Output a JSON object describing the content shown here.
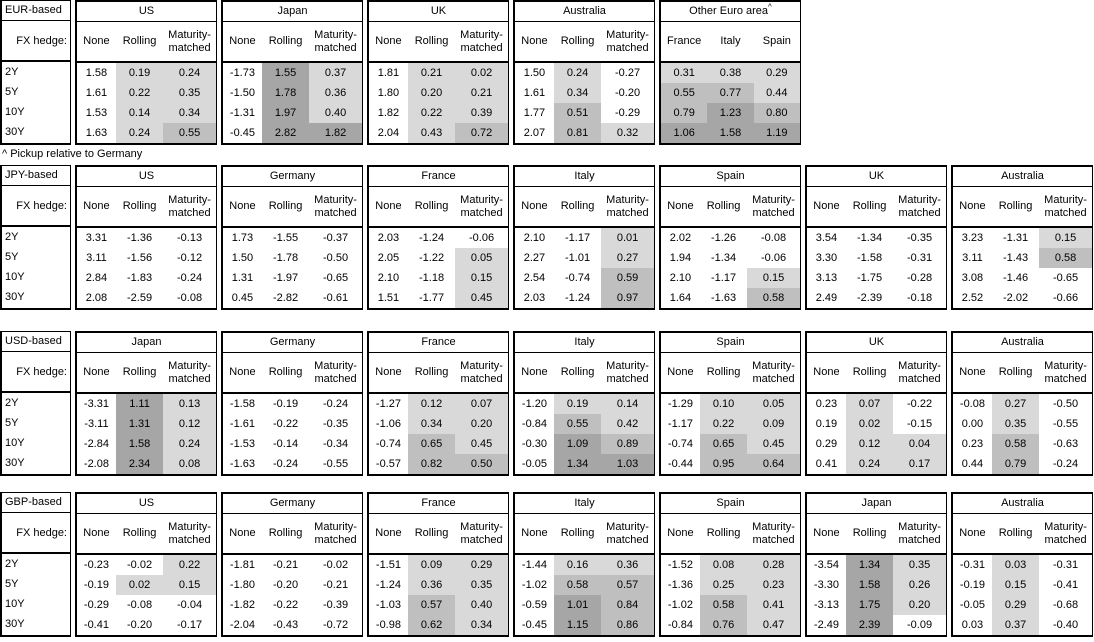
{
  "footnote": "^ Pickup relative to Germany",
  "hedge_label": "FX hedge:",
  "hedge_columns": [
    "None",
    "Rolling",
    "Maturity-matched"
  ],
  "row_labels": [
    "2Y",
    "5Y",
    "10Y",
    "30Y"
  ],
  "shading": {
    "negative": "#ffffff",
    "low": "#d9d9d9",
    "mid": "#bfbfbf",
    "high": "#a6a6a6",
    "bins": [
      0,
      0.5,
      1.0
    ],
    "note": "cell background by value: <0 white, 0-0.5 low, 0.5-1 mid, >=1 high"
  },
  "border_color": "#000000",
  "tables": [
    {
      "base": "EUR-based",
      "groups": [
        {
          "name": "US",
          "shaded": [
            false,
            true,
            true
          ],
          "rows": [
            [
              "1.58",
              "0.19",
              "0.24"
            ],
            [
              "1.61",
              "0.22",
              "0.35"
            ],
            [
              "1.53",
              "0.14",
              "0.34"
            ],
            [
              "1.63",
              "0.24",
              "0.55"
            ]
          ]
        },
        {
          "name": "Japan",
          "shaded": [
            false,
            true,
            true
          ],
          "rows": [
            [
              "-1.73",
              "1.55",
              "0.37"
            ],
            [
              "-1.50",
              "1.78",
              "0.36"
            ],
            [
              "-1.31",
              "1.97",
              "0.40"
            ],
            [
              "-0.45",
              "2.82",
              "1.82"
            ]
          ]
        },
        {
          "name": "UK",
          "shaded": [
            false,
            true,
            true
          ],
          "rows": [
            [
              "1.81",
              "0.21",
              "0.02"
            ],
            [
              "1.80",
              "0.20",
              "0.21"
            ],
            [
              "1.82",
              "0.22",
              "0.39"
            ],
            [
              "2.04",
              "0.43",
              "0.72"
            ]
          ]
        },
        {
          "name": "Australia",
          "shaded": [
            false,
            true,
            true
          ],
          "rows": [
            [
              "1.50",
              "0.24",
              "-0.27"
            ],
            [
              "1.61",
              "0.34",
              "-0.20"
            ],
            [
              "1.77",
              "0.51",
              "-0.29"
            ],
            [
              "2.07",
              "0.81",
              "0.32"
            ]
          ]
        },
        {
          "name": "Other Euro area",
          "sup": "^",
          "equal": true,
          "shaded": [
            true,
            true,
            true
          ],
          "columns": [
            "France",
            "Italy",
            "Spain"
          ],
          "rows": [
            [
              "0.31",
              "0.38",
              "0.29"
            ],
            [
              "0.55",
              "0.77",
              "0.44"
            ],
            [
              "0.79",
              "1.23",
              "0.80"
            ],
            [
              "1.06",
              "1.58",
              "1.19"
            ]
          ]
        }
      ]
    },
    {
      "base": "JPY-based",
      "groups": [
        {
          "name": "US",
          "shaded": [
            false,
            true,
            true
          ],
          "rows": [
            [
              "3.31",
              "-1.36",
              "-0.13"
            ],
            [
              "3.11",
              "-1.56",
              "-0.12"
            ],
            [
              "2.84",
              "-1.83",
              "-0.24"
            ],
            [
              "2.08",
              "-2.59",
              "-0.08"
            ]
          ]
        },
        {
          "name": "Germany",
          "shaded": [
            false,
            true,
            true
          ],
          "rows": [
            [
              "1.73",
              "-1.55",
              "-0.37"
            ],
            [
              "1.50",
              "-1.78",
              "-0.50"
            ],
            [
              "1.31",
              "-1.97",
              "-0.65"
            ],
            [
              "0.45",
              "-2.82",
              "-0.61"
            ]
          ]
        },
        {
          "name": "France",
          "shaded": [
            false,
            true,
            true
          ],
          "rows": [
            [
              "2.03",
              "-1.24",
              "-0.06"
            ],
            [
              "2.05",
              "-1.22",
              "0.05"
            ],
            [
              "2.10",
              "-1.18",
              "0.15"
            ],
            [
              "1.51",
              "-1.77",
              "0.45"
            ]
          ]
        },
        {
          "name": "Italy",
          "shaded": [
            false,
            true,
            true
          ],
          "rows": [
            [
              "2.10",
              "-1.17",
              "0.01"
            ],
            [
              "2.27",
              "-1.01",
              "0.27"
            ],
            [
              "2.54",
              "-0.74",
              "0.59"
            ],
            [
              "2.03",
              "-1.24",
              "0.97"
            ]
          ]
        },
        {
          "name": "Spain",
          "shaded": [
            false,
            true,
            true
          ],
          "rows": [
            [
              "2.02",
              "-1.26",
              "-0.08"
            ],
            [
              "1.94",
              "-1.34",
              "-0.06"
            ],
            [
              "2.10",
              "-1.17",
              "0.15"
            ],
            [
              "1.64",
              "-1.63",
              "0.58"
            ]
          ]
        },
        {
          "name": "UK",
          "shaded": [
            false,
            true,
            true
          ],
          "rows": [
            [
              "3.54",
              "-1.34",
              "-0.35"
            ],
            [
              "3.30",
              "-1.58",
              "-0.31"
            ],
            [
              "3.13",
              "-1.75",
              "-0.28"
            ],
            [
              "2.49",
              "-2.39",
              "-0.18"
            ]
          ]
        },
        {
          "name": "Australia",
          "shaded": [
            false,
            true,
            true
          ],
          "rows": [
            [
              "3.23",
              "-1.31",
              "0.15"
            ],
            [
              "3.11",
              "-1.43",
              "0.58"
            ],
            [
              "3.08",
              "-1.46",
              "-0.65"
            ],
            [
              "2.52",
              "-2.02",
              "-0.66"
            ]
          ]
        }
      ]
    },
    {
      "base": "USD-based",
      "groups": [
        {
          "name": "Japan",
          "shaded": [
            false,
            true,
            true
          ],
          "rows": [
            [
              "-3.31",
              "1.11",
              "0.13"
            ],
            [
              "-3.11",
              "1.31",
              "0.12"
            ],
            [
              "-2.84",
              "1.58",
              "0.24"
            ],
            [
              "-2.08",
              "2.34",
              "0.08"
            ]
          ]
        },
        {
          "name": "Germany",
          "shaded": [
            false,
            true,
            true
          ],
          "rows": [
            [
              "-1.58",
              "-0.19",
              "-0.24"
            ],
            [
              "-1.61",
              "-0.22",
              "-0.35"
            ],
            [
              "-1.53",
              "-0.14",
              "-0.34"
            ],
            [
              "-1.63",
              "-0.24",
              "-0.55"
            ]
          ]
        },
        {
          "name": "France",
          "shaded": [
            false,
            true,
            true
          ],
          "rows": [
            [
              "-1.27",
              "0.12",
              "0.07"
            ],
            [
              "-1.06",
              "0.34",
              "0.20"
            ],
            [
              "-0.74",
              "0.65",
              "0.45"
            ],
            [
              "-0.57",
              "0.82",
              "0.50"
            ]
          ]
        },
        {
          "name": "Italy",
          "shaded": [
            false,
            true,
            true
          ],
          "rows": [
            [
              "-1.20",
              "0.19",
              "0.14"
            ],
            [
              "-0.84",
              "0.55",
              "0.42"
            ],
            [
              "-0.30",
              "1.09",
              "0.89"
            ],
            [
              "-0.05",
              "1.34",
              "1.03"
            ]
          ]
        },
        {
          "name": "Spain",
          "shaded": [
            false,
            true,
            true
          ],
          "rows": [
            [
              "-1.29",
              "0.10",
              "0.05"
            ],
            [
              "-1.17",
              "0.22",
              "0.09"
            ],
            [
              "-0.74",
              "0.65",
              "0.45"
            ],
            [
              "-0.44",
              "0.95",
              "0.64"
            ]
          ]
        },
        {
          "name": "UK",
          "shaded": [
            false,
            true,
            true
          ],
          "rows": [
            [
              "0.23",
              "0.07",
              "-0.22"
            ],
            [
              "0.19",
              "0.02",
              "-0.15"
            ],
            [
              "0.29",
              "0.12",
              "0.04"
            ],
            [
              "0.41",
              "0.24",
              "0.17"
            ]
          ]
        },
        {
          "name": "Australia",
          "shaded": [
            false,
            true,
            true
          ],
          "rows": [
            [
              "-0.08",
              "0.27",
              "-0.50"
            ],
            [
              "0.00",
              "0.35",
              "-0.55"
            ],
            [
              "0.23",
              "0.58",
              "-0.63"
            ],
            [
              "0.44",
              "0.79",
              "-0.24"
            ]
          ]
        }
      ]
    },
    {
      "base": "GBP-based",
      "groups": [
        {
          "name": "US",
          "shaded": [
            false,
            true,
            true
          ],
          "rows": [
            [
              "-0.23",
              "-0.02",
              "0.22"
            ],
            [
              "-0.19",
              "0.02",
              "0.15"
            ],
            [
              "-0.29",
              "-0.08",
              "-0.04"
            ],
            [
              "-0.41",
              "-0.20",
              "-0.17"
            ]
          ]
        },
        {
          "name": "Germany",
          "shaded": [
            false,
            true,
            true
          ],
          "rows": [
            [
              "-1.81",
              "-0.21",
              "-0.02"
            ],
            [
              "-1.80",
              "-0.20",
              "-0.21"
            ],
            [
              "-1.82",
              "-0.22",
              "-0.39"
            ],
            [
              "-2.04",
              "-0.43",
              "-0.72"
            ]
          ]
        },
        {
          "name": "France",
          "shaded": [
            false,
            true,
            true
          ],
          "rows": [
            [
              "-1.51",
              "0.09",
              "0.29"
            ],
            [
              "-1.24",
              "0.36",
              "0.35"
            ],
            [
              "-1.03",
              "0.57",
              "0.40"
            ],
            [
              "-0.98",
              "0.62",
              "0.34"
            ]
          ]
        },
        {
          "name": "Italy",
          "shaded": [
            false,
            true,
            true
          ],
          "rows": [
            [
              "-1.44",
              "0.16",
              "0.36"
            ],
            [
              "-1.02",
              "0.58",
              "0.57"
            ],
            [
              "-0.59",
              "1.01",
              "0.84"
            ],
            [
              "-0.45",
              "1.15",
              "0.86"
            ]
          ]
        },
        {
          "name": "Spain",
          "shaded": [
            false,
            true,
            true
          ],
          "rows": [
            [
              "-1.52",
              "0.08",
              "0.28"
            ],
            [
              "-1.36",
              "0.25",
              "0.23"
            ],
            [
              "-1.02",
              "0.58",
              "0.41"
            ],
            [
              "-0.84",
              "0.76",
              "0.47"
            ]
          ]
        },
        {
          "name": "Japan",
          "shaded": [
            false,
            true,
            true
          ],
          "rows": [
            [
              "-3.54",
              "1.34",
              "0.35"
            ],
            [
              "-3.30",
              "1.58",
              "0.26"
            ],
            [
              "-3.13",
              "1.75",
              "0.20"
            ],
            [
              "-2.49",
              "2.39",
              "-0.09"
            ]
          ]
        },
        {
          "name": "Australia",
          "shaded": [
            false,
            true,
            true
          ],
          "rows": [
            [
              "-0.31",
              "0.03",
              "-0.31"
            ],
            [
              "-0.19",
              "0.15",
              "-0.41"
            ],
            [
              "-0.05",
              "0.29",
              "-0.68"
            ],
            [
              "0.03",
              "0.37",
              "-0.40"
            ]
          ]
        }
      ]
    }
  ]
}
